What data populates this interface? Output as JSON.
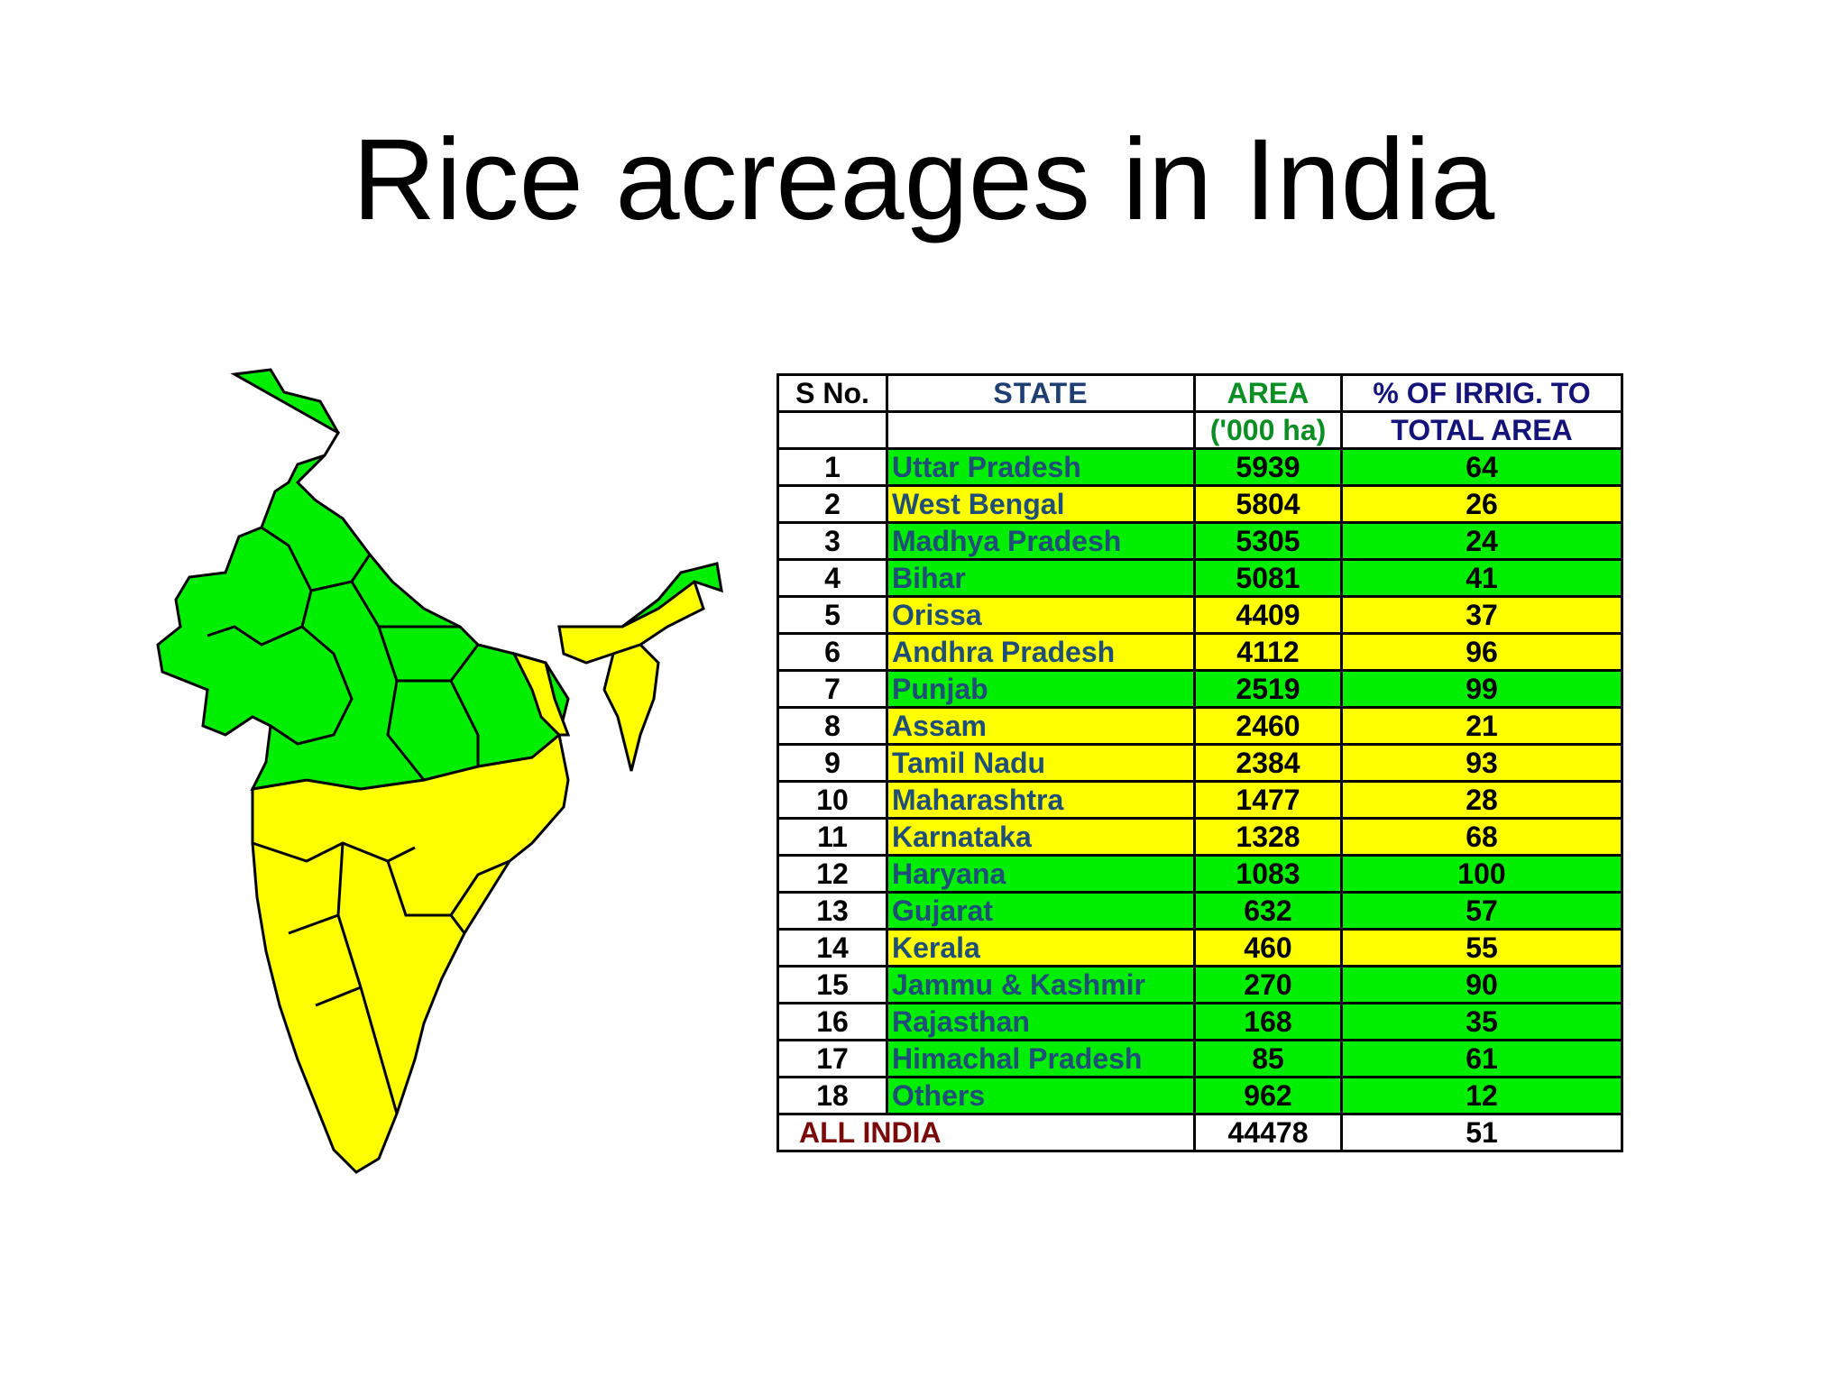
{
  "title": "Rice acreages in India",
  "map": {
    "high_color": "#00ee00",
    "low_color": "#ffff00",
    "icon": "india-map-icon"
  },
  "table": {
    "headers": {
      "sno": "S No.",
      "state": "STATE",
      "area_line1": "AREA",
      "area_line2": "('000 ha)",
      "irrig_line1": "% OF IRRIG. TO",
      "irrig_line2": "TOTAL  AREA"
    },
    "rows": [
      {
        "sno": "1",
        "state": "Uttar Pradesh",
        "area": "5939",
        "irrig": "64",
        "color": "green"
      },
      {
        "sno": "2",
        "state": "West Bengal",
        "area": "5804",
        "irrig": "26",
        "color": "yellow"
      },
      {
        "sno": "3",
        "state": "Madhya Pradesh",
        "area": "5305",
        "irrig": "24",
        "color": "green"
      },
      {
        "sno": "4",
        "state": "Bihar",
        "area": "5081",
        "irrig": "41",
        "color": "green"
      },
      {
        "sno": "5",
        "state": "Orissa",
        "area": "4409",
        "irrig": "37",
        "color": "yellow"
      },
      {
        "sno": "6",
        "state": "Andhra Pradesh",
        "area": "4112",
        "irrig": "96",
        "color": "yellow"
      },
      {
        "sno": "7",
        "state": "Punjab",
        "area": "2519",
        "irrig": "99",
        "color": "green"
      },
      {
        "sno": "8",
        "state": "Assam",
        "area": "2460",
        "irrig": "21",
        "color": "yellow"
      },
      {
        "sno": "9",
        "state": "Tamil Nadu",
        "area": "2384",
        "irrig": "93",
        "color": "yellow"
      },
      {
        "sno": "10",
        "state": "Maharashtra",
        "area": "1477",
        "irrig": "28",
        "color": "yellow"
      },
      {
        "sno": "11",
        "state": "Karnataka",
        "area": "1328",
        "irrig": "68",
        "color": "yellow"
      },
      {
        "sno": "12",
        "state": "Haryana",
        "area": "1083",
        "irrig": "100",
        "color": "green"
      },
      {
        "sno": "13",
        "state": "Gujarat",
        "area": "632",
        "irrig": "57",
        "color": "green"
      },
      {
        "sno": "14",
        "state": "Kerala",
        "area": "460",
        "irrig": "55",
        "color": "yellow"
      },
      {
        "sno": "15",
        "state": "Jammu & Kashmir",
        "area": "270",
        "irrig": "90",
        "color": "green"
      },
      {
        "sno": "16",
        "state": "Rajasthan",
        "area": "168",
        "irrig": "35",
        "color": "green"
      },
      {
        "sno": "17",
        "state": "Himachal Pradesh",
        "area": "85",
        "irrig": "61",
        "color": "green"
      },
      {
        "sno": "18",
        "state": "Others",
        "area": "962",
        "irrig": "12",
        "color": "green"
      }
    ],
    "total": {
      "label": "ALL INDIA",
      "area": "44478",
      "irrig": "51"
    }
  }
}
